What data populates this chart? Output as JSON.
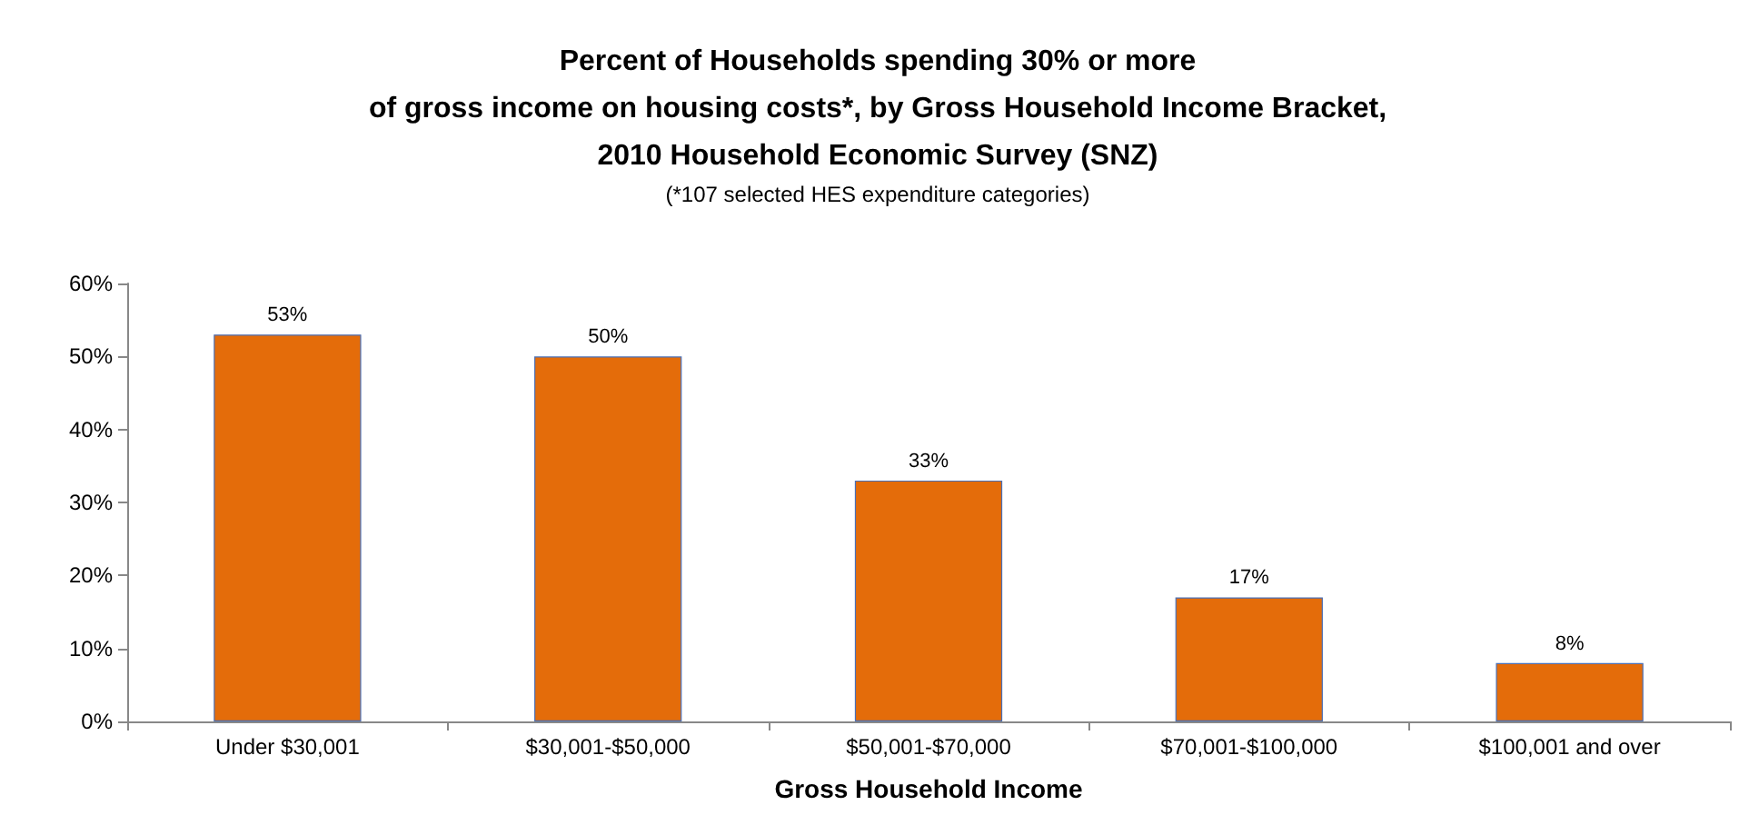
{
  "chart_data": {
    "type": "bar",
    "title": "Percent of Households spending 30% or more\nof gross income on housing costs*, by Gross Household Income Bracket,\n2010 Household Economic Survey (SNZ)",
    "subtitle": "(*107 selected HES expenditure categories)",
    "xlabel": "Gross Household Income",
    "categories": [
      "Under $30,001",
      "$30,001-$50,000",
      "$50,001-$70,000",
      "$70,001-$100,000",
      "$100,001 and over"
    ],
    "values": [
      53,
      50,
      33,
      17,
      8
    ],
    "value_labels": [
      "53%",
      "50%",
      "33%",
      "17%",
      "8%"
    ],
    "color": "#e46c0a",
    "ylim": [
      0,
      60
    ],
    "yticks": [
      {
        "value": 0,
        "label": "0%"
      },
      {
        "value": 10,
        "label": "10%"
      },
      {
        "value": 20,
        "label": "20%"
      },
      {
        "value": 30,
        "label": "30%"
      },
      {
        "value": 40,
        "label": "40%"
      },
      {
        "value": 50,
        "label": "50%"
      },
      {
        "value": 60,
        "label": "60%"
      }
    ],
    "grid": false
  }
}
